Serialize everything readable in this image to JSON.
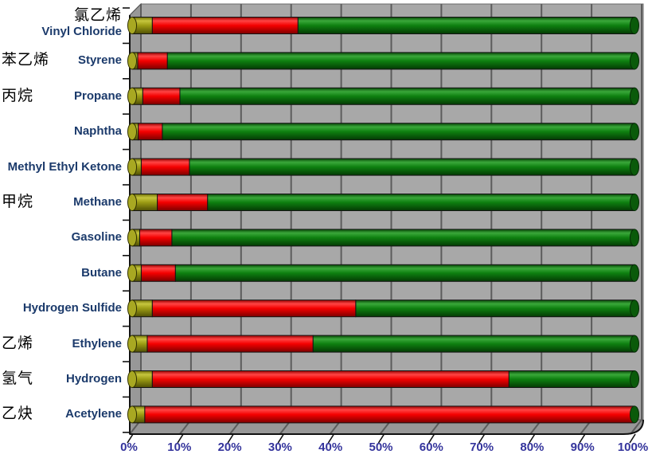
{
  "chart_data": {
    "type": "bar",
    "subtype": "3d-horizontal-stacked-cylinders",
    "orientation": "horizontal",
    "title": "",
    "xlabel": "",
    "ylabel": "",
    "xlim": [
      0,
      100
    ],
    "x_tick_labels": [
      "0%",
      "10%",
      "20%",
      "30%",
      "40%",
      "50%",
      "60%",
      "70%",
      "80%",
      "90%",
      "100%"
    ],
    "grid": true,
    "legend": false,
    "categories": [
      "Vinyl Chloride",
      "Styrene",
      "Propane",
      "Naphtha",
      "Methyl Ethyl Ketone",
      "Methane",
      "Gasoline",
      "Butane",
      "Hydrogen Sulfide",
      "Ethylene",
      "Hydrogen",
      "Acetylene"
    ],
    "categories_zh": [
      "氯乙烯",
      "苯乙烯",
      "丙烷",
      "",
      "",
      "甲烷",
      "",
      "",
      "",
      "乙烯",
      "氢气",
      "乙炔"
    ],
    "items": [
      {
        "name_zh": "氯乙烯",
        "name_en": "Vinyl Chloride",
        "lel_pct": 4,
        "uel_pct": 33
      },
      {
        "name_zh": "苯乙烯",
        "name_en": "Styrene",
        "lel_pct": 1.1,
        "uel_pct": 7
      },
      {
        "name_zh": "丙烷",
        "name_en": "Propane",
        "lel_pct": 2.1,
        "uel_pct": 9.5
      },
      {
        "name_zh": "",
        "name_en": "Naphtha",
        "lel_pct": 1.2,
        "uel_pct": 6
      },
      {
        "name_zh": "",
        "name_en": "Methyl Ethyl Ketone",
        "lel_pct": 1.8,
        "uel_pct": 11.4
      },
      {
        "name_zh": "甲烷",
        "name_en": "Methane",
        "lel_pct": 5,
        "uel_pct": 15
      },
      {
        "name_zh": "",
        "name_en": "Gasoline",
        "lel_pct": 1.5,
        "uel_pct": 7.9
      },
      {
        "name_zh": "",
        "name_en": "Butane",
        "lel_pct": 1.8,
        "uel_pct": 8.6
      },
      {
        "name_zh": "",
        "name_en": "Hydrogen Sulfide",
        "lel_pct": 4,
        "uel_pct": 44.5
      },
      {
        "name_zh": "乙烯",
        "name_en": "Ethylene",
        "lel_pct": 3,
        "uel_pct": 36
      },
      {
        "name_zh": "氢气",
        "name_en": "Hydrogen",
        "lel_pct": 4,
        "uel_pct": 75
      },
      {
        "name_zh": "乙炔",
        "name_en": "Acetylene",
        "lel_pct": 2.5,
        "uel_pct": 100
      }
    ],
    "series": [
      {
        "name": "lower-segment-yellow",
        "color": "#9c9c14",
        "values": [
          4,
          1.1,
          2.1,
          1.2,
          1.8,
          5,
          1.5,
          1.8,
          4,
          3,
          4,
          2.5
        ]
      },
      {
        "name": "middle-segment-red",
        "color": "#f40000",
        "values": [
          29,
          5.9,
          7.4,
          4.8,
          9.6,
          10,
          6.4,
          6.8,
          40.5,
          33,
          71,
          97.5
        ]
      },
      {
        "name": "upper-segment-green",
        "color": "#0e8010",
        "values": [
          67,
          93,
          90.5,
          94,
          88.6,
          85,
          92.1,
          91.4,
          55.5,
          64,
          25,
          0
        ]
      }
    ]
  },
  "colors": {
    "plot_bg": "#a8a8a8",
    "wall": "#989898",
    "gridline": "#5c5c5c",
    "axis_line": "#111111",
    "x_tick_label": "#34349c",
    "category_en": "#1b3a6b",
    "category_zh": "#000000",
    "segment_yellow": "#9c9c14",
    "segment_red": "#f40000",
    "segment_green": "#0e8010",
    "end_cap_green": "#0a5a0a",
    "start_cap_olive": "#a8a822"
  }
}
